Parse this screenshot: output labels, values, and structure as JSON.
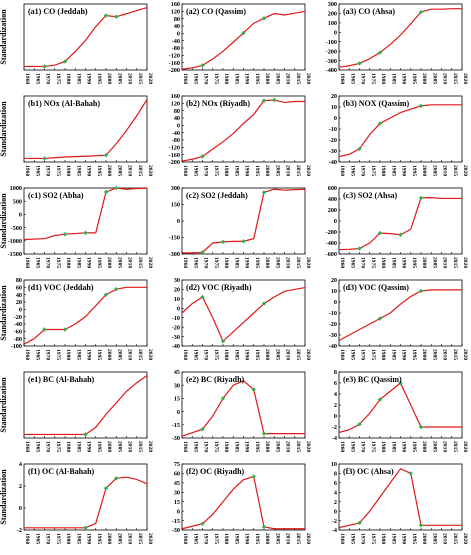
{
  "ylabel": "Standardization",
  "x_ticks": [
    1960,
    1965,
    1970,
    1975,
    1980,
    1985,
    1990,
    1995,
    2000,
    2005,
    2010,
    2015,
    2020
  ],
  "colors": {
    "line": "#e01818",
    "marker": "#2fb34a",
    "axis": "#000000"
  },
  "chart_data": [
    {
      "type": "line",
      "title": "(a1) CO (Jeddah)",
      "xlim": [
        1960,
        2020
      ],
      "ylim": [
        null,
        null
      ],
      "yticks": [],
      "x": [
        1960,
        1970,
        1975,
        1980,
        1985,
        1990,
        1995,
        2000,
        2005,
        2010,
        2015,
        2020
      ],
      "values": [
        -1,
        -1,
        -0.95,
        -0.8,
        -0.4,
        0.05,
        0.6,
        1.05,
        1.0,
        1.12,
        1.25,
        1.37
      ],
      "markers": [
        1970,
        1980,
        2000,
        2005
      ]
    },
    {
      "type": "line",
      "title": "(a2) CO (Qassim)",
      "xlim": [
        1960,
        2020
      ],
      "ylim": [
        -200,
        160
      ],
      "yticks": [
        -200,
        -160,
        -120,
        -80,
        -40,
        0,
        40,
        80,
        120,
        160
      ],
      "x": [
        1960,
        1965,
        1970,
        1975,
        1980,
        1985,
        1990,
        1995,
        2000,
        2005,
        2010,
        2015,
        2020
      ],
      "values": [
        -196,
        -188,
        -175,
        -140,
        -98,
        -48,
        2,
        55,
        82,
        108,
        100,
        110,
        120
      ],
      "markers": [
        1970,
        1990,
        2000
      ]
    },
    {
      "type": "line",
      "title": "(a3) CO (Ahsa)",
      "xlim": [
        1960,
        2020
      ],
      "ylim": [
        -400,
        300
      ],
      "yticks": [
        -400,
        -300,
        -200,
        -100,
        0,
        100,
        200,
        300
      ],
      "x": [
        1960,
        1965,
        1970,
        1975,
        1980,
        1985,
        1990,
        1995,
        2000,
        2005,
        2010,
        2015,
        2020
      ],
      "values": [
        -370,
        -355,
        -330,
        -280,
        -215,
        -130,
        -30,
        90,
        215,
        245,
        245,
        250,
        250
      ],
      "markers": [
        1970,
        1980,
        2000
      ]
    },
    {
      "type": "line",
      "title": "(b1) NOx (Al-Bahah)",
      "xlim": [
        1960,
        2020
      ],
      "ylim": [
        null,
        null
      ],
      "yticks": [],
      "x": [
        1960,
        1970,
        1975,
        1980,
        1990,
        2000,
        2005,
        2010,
        2015,
        2020
      ],
      "values": [
        -1,
        -1,
        -0.95,
        -0.9,
        -0.85,
        -0.78,
        0.0,
        0.9,
        1.9,
        3.0
      ],
      "markers": [
        1970,
        2000
      ]
    },
    {
      "type": "line",
      "title": "(b2) NOx (Riyadh)",
      "xlim": [
        1960,
        2020
      ],
      "ylim": [
        -200,
        160
      ],
      "yticks": [
        -200,
        -160,
        -120,
        -80,
        -40,
        0,
        40,
        80,
        120,
        160
      ],
      "x": [
        1960,
        1965,
        1970,
        1975,
        1980,
        1985,
        1990,
        1995,
        2000,
        2005,
        2010,
        2015,
        2020
      ],
      "values": [
        -195,
        -185,
        -170,
        -130,
        -90,
        -45,
        10,
        60,
        135,
        138,
        125,
        130,
        130
      ],
      "markers": [
        1970,
        2000,
        2005
      ]
    },
    {
      "type": "line",
      "title": "(b3) NOX (Qassim)",
      "xlim": [
        1960,
        2020
      ],
      "ylim": [
        -40,
        20
      ],
      "yticks": [
        -40,
        -30,
        -20,
        -10,
        0,
        10,
        20
      ],
      "x": [
        1960,
        1965,
        1970,
        1975,
        1980,
        1985,
        1990,
        1995,
        2000,
        2005,
        2010,
        2015,
        2020
      ],
      "values": [
        -35,
        -33,
        -28,
        -15,
        -5,
        0,
        5,
        8,
        11,
        12,
        12,
        12,
        12
      ],
      "markers": [
        1970,
        1980,
        2000
      ]
    },
    {
      "type": "line",
      "title": "(c1) SO2 (Abha)",
      "xlim": [
        1960,
        2020
      ],
      "ylim": [
        -1500,
        1000
      ],
      "yticks": [
        -1500,
        -1000,
        -500,
        0,
        500,
        1000
      ],
      "x": [
        1960,
        1970,
        1975,
        1980,
        1990,
        1995,
        2000,
        2005,
        2010,
        2015,
        2020
      ],
      "values": [
        -950,
        -920,
        -800,
        -750,
        -700,
        -700,
        850,
        1000,
        950,
        980,
        990
      ],
      "markers": [
        1980,
        1990,
        2000,
        2005
      ]
    },
    {
      "type": "line",
      "title": "(c2) SO2 (Jeddah)",
      "xlim": [
        1960,
        2020
      ],
      "ylim": [
        -300,
        300
      ],
      "yticks": [
        -300,
        -150,
        0,
        150,
        300
      ],
      "x": [
        1960,
        1965,
        1970,
        1975,
        1980,
        1985,
        1990,
        1995,
        2000,
        2005,
        2010,
        2015,
        2020
      ],
      "values": [
        -290,
        -290,
        -285,
        -200,
        -190,
        -185,
        -185,
        -160,
        260,
        290,
        280,
        285,
        288
      ],
      "markers": [
        1970,
        1980,
        1990,
        2000
      ]
    },
    {
      "type": "line",
      "title": "(c3) SO2 (Ahsa)",
      "xlim": [
        1960,
        2020
      ],
      "ylim": [
        -600,
        600
      ],
      "yticks": [
        -600,
        -400,
        -200,
        0,
        200,
        400,
        600
      ],
      "x": [
        1960,
        1965,
        1970,
        1975,
        1980,
        1985,
        1990,
        1995,
        2000,
        2005,
        2010,
        2015,
        2020
      ],
      "values": [
        -520,
        -515,
        -500,
        -400,
        -220,
        -230,
        -250,
        -150,
        420,
        425,
        410,
        410,
        410
      ],
      "markers": [
        1970,
        1980,
        1990,
        2000
      ]
    },
    {
      "type": "line",
      "title": "(d1) VOC (Jeddah)",
      "xlim": [
        1960,
        2020
      ],
      "ylim": [
        -100,
        80
      ],
      "yticks": [
        -100,
        -80,
        -60,
        -40,
        -20,
        0,
        20,
        40,
        60,
        80
      ],
      "x": [
        1960,
        1965,
        1970,
        1975,
        1980,
        1985,
        1990,
        1995,
        2000,
        2005,
        2010,
        2015,
        2020
      ],
      "values": [
        -95,
        -80,
        -55,
        -55,
        -55,
        -40,
        -20,
        10,
        40,
        55,
        60,
        60,
        60
      ],
      "markers": [
        1970,
        1980,
        2000,
        2005
      ]
    },
    {
      "type": "line",
      "title": "(d2) VOC (Riyadh)",
      "xlim": [
        1960,
        2020
      ],
      "ylim": [
        -40,
        30
      ],
      "yticks": [
        -40,
        -30,
        -20,
        -10,
        0,
        10,
        20,
        30
      ],
      "x": [
        1960,
        1965,
        1970,
        1975,
        1980,
        1985,
        1990,
        1995,
        2000,
        2005,
        2010,
        2015,
        2020
      ],
      "values": [
        -5,
        5,
        12,
        -10,
        -35,
        -25,
        -15,
        -5,
        5,
        12,
        18,
        20,
        22
      ],
      "markers": [
        1970,
        1980,
        2000
      ]
    },
    {
      "type": "line",
      "title": "(d3) VOC (Qassim)",
      "xlim": [
        1960,
        2020
      ],
      "ylim": [
        -40,
        20
      ],
      "yticks": [
        -40,
        -30,
        -20,
        -10,
        0,
        10,
        20
      ],
      "x": [
        1960,
        1965,
        1970,
        1975,
        1980,
        1985,
        1990,
        1995,
        2000,
        2005,
        2010,
        2015,
        2020
      ],
      "values": [
        -35,
        -30,
        -25,
        -20,
        -15,
        -10,
        -2,
        5,
        10,
        11,
        11,
        11,
        11
      ],
      "markers": [
        1980,
        2000
      ]
    },
    {
      "type": "line",
      "title": "(e1) BC (Al-Bahah)",
      "xlim": [
        1960,
        2020
      ],
      "ylim": [
        null,
        null
      ],
      "yticks": [],
      "x": [
        1960,
        1970,
        1980,
        1990,
        1995,
        2000,
        2005,
        2010,
        2015,
        2020
      ],
      "values": [
        -1,
        -1,
        -1,
        -1,
        -0.5,
        0.4,
        1.2,
        2.0,
        2.6,
        3.1
      ],
      "markers": [
        1990
      ]
    },
    {
      "type": "line",
      "title": "(e2) BC (Riyadh)",
      "xlim": [
        1960,
        2020
      ],
      "ylim": [
        -30,
        45
      ],
      "yticks": [
        -30,
        -15,
        0,
        15,
        30,
        45
      ],
      "x": [
        1960,
        1970,
        1975,
        1980,
        1985,
        1990,
        1995,
        2000,
        2005,
        2010,
        2015,
        2020
      ],
      "values": [
        -28,
        -20,
        -5,
        15,
        30,
        35,
        25,
        -25,
        -25,
        -25,
        -25,
        -25
      ],
      "markers": [
        1970,
        1980,
        1995,
        2000
      ]
    },
    {
      "type": "line",
      "title": "(e3) BC (Qassim)",
      "xlim": [
        1960,
        2020
      ],
      "ylim": [
        -4,
        8
      ],
      "yticks": [
        -4,
        -2,
        0,
        2,
        4,
        6,
        8
      ],
      "x": [
        1960,
        1965,
        1970,
        1975,
        1980,
        1985,
        1990,
        1995,
        2000,
        2005,
        2010,
        2015,
        2020
      ],
      "values": [
        -3,
        -2.5,
        -1.5,
        0.5,
        3,
        4.5,
        6,
        2,
        -2,
        -2,
        -2,
        -2,
        -2
      ],
      "markers": [
        1970,
        1980,
        1990,
        2000
      ]
    },
    {
      "type": "line",
      "title": "(f1) OC (Al-Bahah)",
      "xlim": [
        1960,
        2020
      ],
      "ylim": [
        -2,
        4
      ],
      "yticks": [
        -2,
        0,
        2,
        4
      ],
      "x": [
        1960,
        1970,
        1980,
        1990,
        1995,
        2000,
        2005,
        2010,
        2015,
        2020
      ],
      "values": [
        -1.8,
        -1.8,
        -1.8,
        -1.8,
        -1.4,
        1.8,
        2.7,
        2.8,
        2.6,
        2.2
      ],
      "markers": [
        1990,
        2000,
        2005
      ]
    },
    {
      "type": "line",
      "title": "(f2) OC (Riyadh)",
      "xlim": [
        1960,
        2020
      ],
      "ylim": [
        -30,
        75
      ],
      "yticks": [
        -30,
        -15,
        0,
        15,
        30,
        45,
        60,
        75
      ],
      "x": [
        1960,
        1970,
        1975,
        1980,
        1985,
        1990,
        1995,
        2000,
        2005,
        2010,
        2015,
        2020
      ],
      "values": [
        -28,
        -20,
        -5,
        15,
        35,
        50,
        55,
        -25,
        -28,
        -28,
        -28,
        -28
      ],
      "markers": [
        1970,
        1995,
        2000
      ]
    },
    {
      "type": "line",
      "title": "(f3) OC (Ahsa)",
      "xlim": [
        1960,
        2020
      ],
      "ylim": [
        -4,
        10
      ],
      "yticks": [
        -4,
        -2,
        0,
        2,
        4,
        6,
        8,
        10
      ],
      "x": [
        1960,
        1965,
        1970,
        1975,
        1980,
        1985,
        1990,
        1995,
        2000,
        2005,
        2010,
        2015,
        2020
      ],
      "values": [
        -3.5,
        -3,
        -2.5,
        0,
        3,
        6,
        9,
        8,
        -3,
        -3,
        -3,
        -3,
        -3
      ],
      "markers": [
        1970,
        1995,
        2000
      ]
    }
  ]
}
